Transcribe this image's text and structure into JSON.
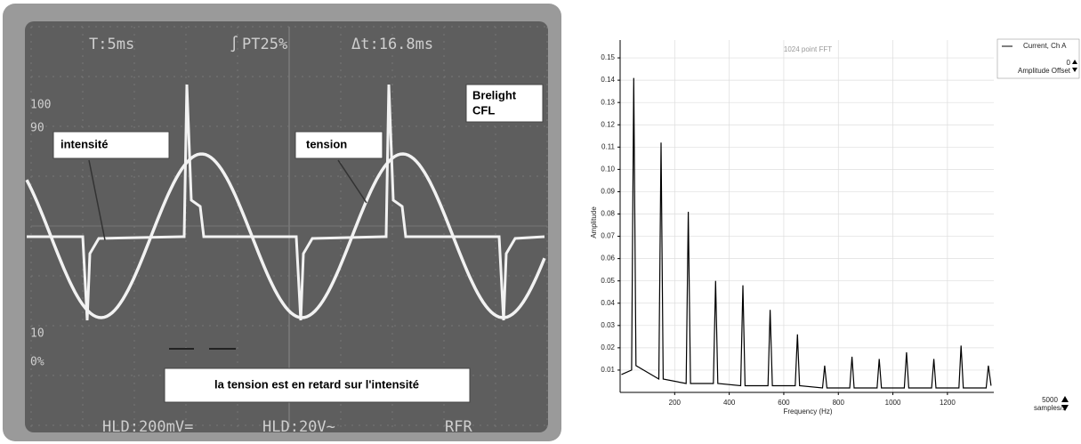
{
  "oscilloscope": {
    "timebase": "T:5ms",
    "trigger": "PT25%",
    "delta": "Δt:16.8ms",
    "level_100": "100",
    "level_90": "90",
    "level_10": "10",
    "level_0": "0%",
    "label_current": "intensité",
    "label_voltage": "tension",
    "lamp": [
      "Brelight",
      "CFL"
    ],
    "caption": "la tension est en retard sur l'intensité",
    "ch1": "HLD:200mV=",
    "ch2": "HLD:20V~",
    "mode": "RFR"
  },
  "chart_data": {
    "type": "line",
    "title": "1024 point FFT",
    "x_label": "Frequency (Hz)",
    "y_label": "Amplitude",
    "series": [
      {
        "name": "Current, Ch A",
        "color": "#000000",
        "x": [
          5,
          42,
          50,
          58,
          142,
          150,
          158,
          242,
          250,
          258,
          342,
          350,
          358,
          442,
          450,
          458,
          542,
          550,
          558,
          642,
          650,
          658,
          742,
          750,
          758,
          842,
          850,
          858,
          942,
          950,
          958,
          1042,
          1050,
          1058,
          1142,
          1150,
          1158,
          1242,
          1250,
          1258,
          1342,
          1350,
          1360
        ],
        "values": [
          0.008,
          0.01,
          0.141,
          0.012,
          0.006,
          0.112,
          0.006,
          0.004,
          0.081,
          0.004,
          0.004,
          0.05,
          0.004,
          0.003,
          0.048,
          0.003,
          0.003,
          0.037,
          0.003,
          0.003,
          0.026,
          0.003,
          0.002,
          0.012,
          0.002,
          0.002,
          0.016,
          0.002,
          0.002,
          0.015,
          0.002,
          0.002,
          0.018,
          0.002,
          0.002,
          0.015,
          0.002,
          0.002,
          0.021,
          0.002,
          0.002,
          0.012,
          0.003
        ]
      }
    ],
    "xlim": [
      0,
      1370
    ],
    "xticks": [
      200,
      400,
      600,
      800,
      1000,
      1200
    ],
    "ylim": [
      0,
      0.158
    ],
    "yticks": [
      0.01,
      0.02,
      0.03,
      0.04,
      0.05,
      0.06,
      0.07,
      0.08,
      0.09,
      {
        "value": 0.1,
        "label": "0.10"
      },
      0.11,
      0.12,
      0.13,
      0.14,
      0.15
    ],
    "grid": true,
    "offset_label": "Amplitude Offset",
    "offset_value": "0",
    "sample_rate": "5000",
    "sample_rate_unit": "samples/s"
  }
}
